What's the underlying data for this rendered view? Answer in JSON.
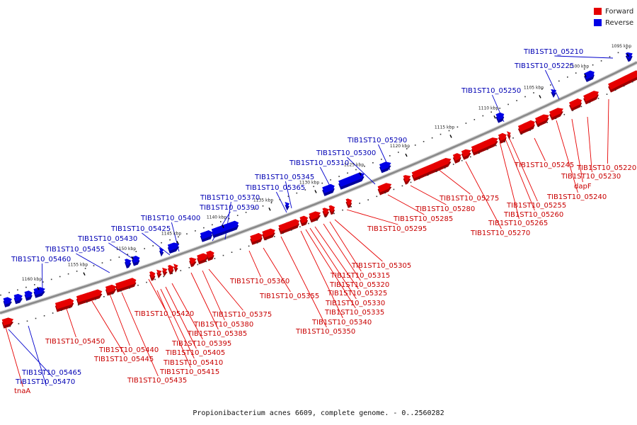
{
  "legend": {
    "forward_label": "Forward",
    "reverse_label": "Reverse",
    "forward_color": "#e60000",
    "reverse_color": "#0000e6"
  },
  "colors": {
    "forward": "#e60000",
    "forward_shade": "#9a0000",
    "reverse": "#0000e6",
    "reverse_shade": "#00009a",
    "forward_line": "#e60000",
    "reverse_line": "#0000cc",
    "backbone": "#999999"
  },
  "footer": "Propionibacterium acnes 6609, complete genome. - 0..2560282",
  "ticks": [
    "1095 kbp",
    "1100 kbp",
    "1105 kbp",
    "1110 kbp",
    "1115 kbp",
    "1120 kbp",
    "1125 kbp",
    "1130 kbp",
    "1135 kbp",
    "1140 kbp",
    "1145 kbp",
    "1150 kbp",
    "1155 kbp",
    "1160 kbp"
  ],
  "reverse_labels": [
    "TIB1ST10_05210",
    "TIB1ST10_05225",
    "TIB1ST10_05250",
    "TIB1ST10_05290",
    "TIB1ST10_05300",
    "TIB1ST10_05310",
    "TIB1ST10_05345",
    "TIB1ST10_05365",
    "TIB1ST10_05370",
    "TIB1ST10_05390",
    "TIB1ST10_05400",
    "TIB1ST10_05425",
    "TIB1ST10_05430",
    "TIB1ST10_05455",
    "TIB1ST10_05460",
    "TIB1ST10_05465",
    "TIB1ST10_05470"
  ],
  "forward_labels": [
    "TIB1ST10_05220",
    "TIB1ST10_05230",
    "dapF",
    "TIB1ST10_05240",
    "TIB1ST10_05245",
    "TIB1ST10_05255",
    "TIB1ST10_05260",
    "TIB1ST10_05265",
    "TIB1ST10_05270",
    "TIB1ST10_05275",
    "TIB1ST10_05280",
    "TIB1ST10_05285",
    "TIB1ST10_05295",
    "TIB1ST10_05305",
    "TIB1ST10_05315",
    "TIB1ST10_05320",
    "TIB1ST10_05325",
    "TIB1ST10_05330",
    "TIB1ST10_05335",
    "TIB1ST10_05340",
    "TIB1ST10_05350",
    "TIB1ST10_05355",
    "TIB1ST10_05360",
    "TIB1ST10_05375",
    "TIB1ST10_05380",
    "TIB1ST10_05385",
    "TIB1ST10_05395",
    "TIB1ST10_05405",
    "TIB1ST10_05410",
    "TIB1ST10_05415",
    "TIB1ST10_05420",
    "TIB1ST10_05435",
    "TIB1ST10_05440",
    "TIB1ST10_05445",
    "TIB1ST10_05450",
    "tnaA"
  ]
}
